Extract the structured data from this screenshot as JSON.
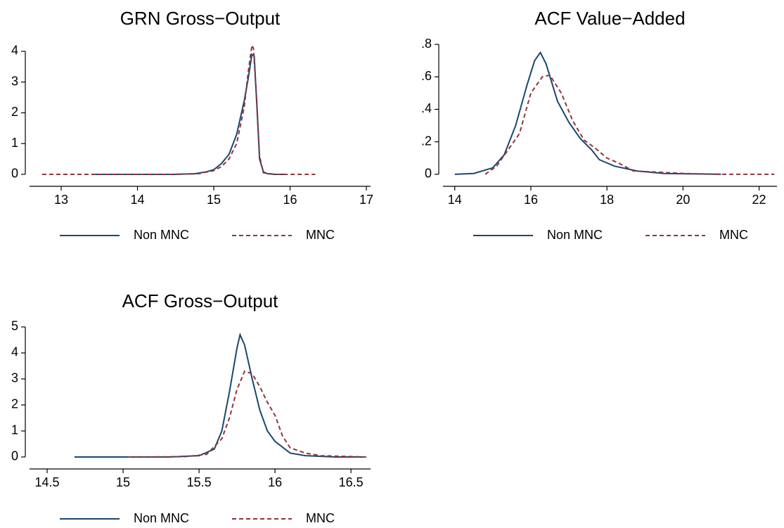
{
  "chart_data": [
    {
      "type": "line",
      "title": "GRN Gross−Output",
      "xlim": [
        12.585,
        17.055
      ],
      "ylim": [
        -0.39,
        4.48
      ],
      "xticks": [
        13,
        14,
        15,
        16,
        17
      ],
      "yticks": [
        0,
        1,
        2,
        3,
        4
      ],
      "legend": "bottom",
      "series": [
        {
          "name": "Non MNC",
          "color": "#1a476f",
          "dashed": false,
          "x": [
            13.45,
            14.0,
            14.5,
            14.75,
            14.9,
            15.0,
            15.1,
            15.2,
            15.3,
            15.4,
            15.45,
            15.5,
            15.53,
            15.57,
            15.6,
            15.65,
            15.7,
            15.8,
            15.95
          ],
          "values": [
            0,
            0,
            0,
            0.02,
            0.08,
            0.15,
            0.35,
            0.65,
            1.3,
            2.4,
            3.1,
            3.9,
            3.85,
            2.0,
            0.5,
            0.08,
            0.02,
            0,
            0
          ]
        },
        {
          "name": "MNC",
          "color": "#90353b",
          "dashed": true,
          "x": [
            12.75,
            13.5,
            14.5,
            14.8,
            15.0,
            15.1,
            15.2,
            15.3,
            15.4,
            15.45,
            15.5,
            15.52,
            15.56,
            15.6,
            15.65,
            15.8,
            16.33
          ],
          "values": [
            0,
            0,
            0,
            0.02,
            0.12,
            0.25,
            0.5,
            1.0,
            2.2,
            3.3,
            4.2,
            4.1,
            2.5,
            0.6,
            0.05,
            0,
            0
          ]
        }
      ]
    },
    {
      "type": "line",
      "title": "ACF Value−Added",
      "xlim": [
        13.69,
        22.47
      ],
      "ylim": [
        -0.074,
        0.848
      ],
      "xticks": [
        14,
        16,
        18,
        20,
        22
      ],
      "yticks": [
        0,
        {
          "value": 0.2,
          "label": ".2"
        },
        {
          "value": 0.4,
          "label": ".4"
        },
        {
          "value": 0.6,
          "label": ".6"
        },
        {
          "value": 0.8,
          "label": ".8"
        }
      ],
      "legend": "bottom",
      "series": [
        {
          "name": "Non MNC",
          "color": "#1a476f",
          "dashed": false,
          "x": [
            14.0,
            14.5,
            15.0,
            15.3,
            15.6,
            15.9,
            16.1,
            16.25,
            16.4,
            16.7,
            17.0,
            17.3,
            17.6,
            17.8,
            18.2,
            18.8,
            19.5,
            21.0
          ],
          "values": [
            0,
            0.005,
            0.04,
            0.12,
            0.3,
            0.55,
            0.7,
            0.75,
            0.68,
            0.45,
            0.32,
            0.22,
            0.15,
            0.09,
            0.05,
            0.02,
            0.005,
            0
          ]
        },
        {
          "name": "MNC",
          "color": "#90353b",
          "dashed": true,
          "x": [
            14.8,
            15.1,
            15.4,
            15.7,
            16.0,
            16.3,
            16.5,
            16.8,
            17.1,
            17.4,
            17.7,
            18.0,
            18.3,
            18.7,
            19.2,
            20.0,
            21.0,
            22.4
          ],
          "values": [
            0,
            0.05,
            0.15,
            0.25,
            0.5,
            0.6,
            0.61,
            0.5,
            0.33,
            0.21,
            0.16,
            0.1,
            0.07,
            0.02,
            0.015,
            0.005,
            0,
            0
          ]
        }
      ]
    },
    {
      "type": "line",
      "title": "ACF Gross−Output",
      "xlim": [
        14.384,
        16.629
      ],
      "ylim": [
        -0.46,
        5.27
      ],
      "xticks": [
        14.5,
        15,
        15.5,
        16,
        16.5
      ],
      "yticks": [
        0,
        1,
        2,
        3,
        4,
        5
      ],
      "legend": "bottom",
      "series": [
        {
          "name": "Non MNC",
          "color": "#1a476f",
          "dashed": false,
          "x": [
            14.68,
            15.3,
            15.5,
            15.6,
            15.65,
            15.7,
            15.75,
            15.77,
            15.8,
            15.85,
            15.9,
            15.95,
            16.0,
            16.1,
            16.2,
            16.4,
            16.6
          ],
          "values": [
            0,
            0,
            0.05,
            0.3,
            1.0,
            2.5,
            4.2,
            4.7,
            4.3,
            3.0,
            1.8,
            1.0,
            0.6,
            0.15,
            0.05,
            0,
            0
          ]
        },
        {
          "name": "MNC",
          "color": "#90353b",
          "dashed": true,
          "x": [
            15.03,
            15.4,
            15.55,
            15.65,
            15.7,
            15.75,
            15.8,
            15.85,
            15.9,
            15.95,
            16.0,
            16.05,
            16.1,
            16.2,
            16.3,
            16.6
          ],
          "values": [
            0,
            0.01,
            0.1,
            0.7,
            1.5,
            2.6,
            3.3,
            3.2,
            2.7,
            2.1,
            1.6,
            0.8,
            0.35,
            0.15,
            0.05,
            0
          ]
        }
      ]
    }
  ]
}
